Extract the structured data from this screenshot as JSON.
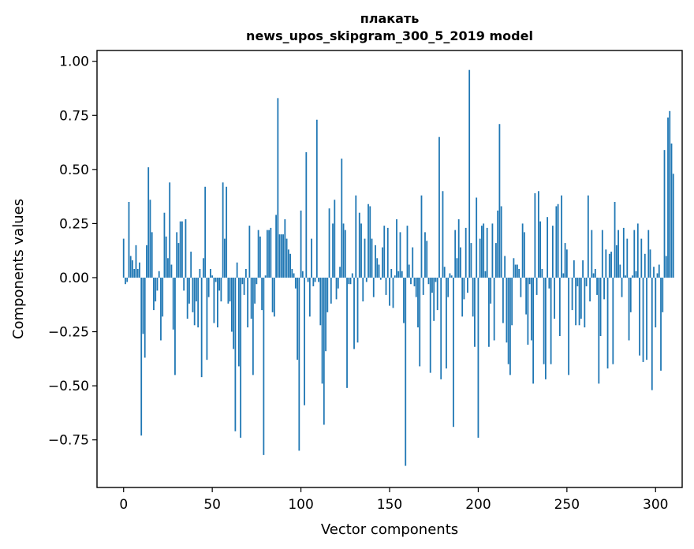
{
  "chart_data": {
    "type": "bar",
    "title": "плакать",
    "subtitle": "news_upos_skipgram_300_5_2019 model",
    "xlabel": "Vector components",
    "ylabel": "Components values",
    "xlim": [
      -15,
      315
    ],
    "ylim": [
      -0.97,
      1.05
    ],
    "xticks": [
      0,
      50,
      100,
      150,
      200,
      250,
      300
    ],
    "xtick_labels": [
      "0",
      "50",
      "100",
      "150",
      "200",
      "250",
      "300"
    ],
    "yticks": [
      -0.75,
      -0.5,
      -0.25,
      0.0,
      0.25,
      0.5,
      0.75,
      1.0
    ],
    "ytick_labels": [
      "−0.75",
      "−0.50",
      "−0.25",
      "0.00",
      "0.25",
      "0.50",
      "0.75",
      "1.00"
    ],
    "grid": false,
    "bar_color": "#1f77b4",
    "x_start": 0,
    "values": [
      0.18,
      -0.03,
      -0.02,
      0.35,
      0.1,
      0.08,
      0.04,
      0.15,
      0.04,
      0.07,
      -0.73,
      -0.26,
      -0.37,
      0.15,
      0.51,
      0.36,
      0.21,
      -0.15,
      -0.11,
      -0.06,
      0.03,
      -0.29,
      -0.18,
      0.3,
      0.19,
      0.09,
      0.44,
      0.06,
      -0.24,
      -0.45,
      0.21,
      0.16,
      0.26,
      0.26,
      -0.06,
      0.27,
      -0.19,
      -0.12,
      0.12,
      -0.16,
      -0.22,
      -0.11,
      -0.23,
      0.04,
      -0.46,
      0.09,
      0.42,
      -0.38,
      -0.09,
      0.04,
      0.01,
      -0.21,
      -0.02,
      -0.23,
      -0.06,
      -0.11,
      0.44,
      0.18,
      0.42,
      -0.12,
      -0.11,
      -0.25,
      -0.33,
      -0.71,
      0.07,
      -0.41,
      -0.74,
      -0.03,
      -0.08,
      0.04,
      -0.23,
      0.24,
      -0.19,
      -0.45,
      -0.12,
      -0.03,
      0.22,
      0.19,
      -0.15,
      -0.82,
      0.01,
      0.22,
      0.22,
      0.23,
      -0.16,
      -0.18,
      0.29,
      0.83,
      0.2,
      0.2,
      0.2,
      0.27,
      0.18,
      0.13,
      0.11,
      0.04,
      0.02,
      -0.05,
      -0.38,
      -0.8,
      0.31,
      0.03,
      -0.59,
      0.58,
      -0.02,
      -0.18,
      0.18,
      -0.04,
      -0.02,
      0.73,
      -0.02,
      -0.22,
      -0.49,
      -0.68,
      -0.34,
      -0.16,
      0.32,
      -0.12,
      0.25,
      0.36,
      -0.1,
      -0.05,
      0.05,
      0.55,
      0.25,
      0.22,
      -0.51,
      -0.03,
      -0.03,
      0.02,
      -0.33,
      0.38,
      -0.3,
      0.3,
      0.25,
      -0.11,
      0.18,
      -0.02,
      0.34,
      0.33,
      0.18,
      -0.09,
      0.15,
      0.09,
      0.06,
      -0.01,
      0.14,
      0.24,
      -0.08,
      0.23,
      -0.13,
      0.04,
      -0.14,
      0.01,
      0.27,
      0.03,
      0.21,
      0.03,
      -0.21,
      -0.87,
      0.24,
      0.06,
      -0.03,
      0.14,
      -0.04,
      -0.09,
      -0.23,
      -0.41,
      0.38,
      -0.08,
      0.21,
      0.17,
      -0.03,
      -0.44,
      -0.07,
      -0.2,
      -0.02,
      -0.15,
      0.65,
      -0.47,
      0.4,
      0.05,
      -0.42,
      -0.09,
      0.02,
      0.01,
      -0.69,
      0.22,
      0.09,
      0.27,
      0.14,
      -0.18,
      -0.1,
      0.23,
      -0.07,
      0.96,
      0.16,
      -0.18,
      -0.32,
      0.37,
      -0.74,
      0.18,
      0.24,
      0.25,
      0.03,
      0.23,
      -0.32,
      -0.12,
      0.25,
      -0.29,
      0.16,
      0.31,
      0.71,
      0.33,
      -0.21,
      0.1,
      -0.3,
      -0.4,
      -0.45,
      -0.22,
      0.09,
      0.06,
      0.06,
      0.04,
      -0.09,
      0.25,
      0.21,
      -0.17,
      -0.31,
      -0.03,
      -0.29,
      -0.49,
      0.39,
      -0.08,
      0.4,
      0.26,
      0.04,
      -0.4,
      -0.47,
      0.28,
      -0.05,
      -0.4,
      0.24,
      -0.19,
      0.33,
      0.34,
      -0.27,
      0.38,
      0.02,
      0.16,
      0.13,
      -0.45,
      0.0,
      -0.15,
      0.08,
      -0.22,
      -0.04,
      -0.22,
      -0.19,
      0.08,
      -0.23,
      -0.04,
      0.38,
      -0.11,
      0.22,
      0.02,
      0.04,
      -0.08,
      -0.49,
      -0.27,
      0.22,
      -0.1,
      0.13,
      -0.42,
      0.11,
      0.12,
      -0.4,
      0.35,
      0.15,
      0.22,
      0.06,
      -0.09,
      0.23,
      0.01,
      0.18,
      -0.29,
      -0.16,
      0.01,
      0.22,
      0.03,
      0.25,
      -0.36,
      0.18,
      -0.39,
      0.11,
      -0.38,
      0.22,
      0.13,
      -0.52,
      0.05,
      -0.23,
      0.02,
      0.06,
      -0.43,
      -0.16,
      0.59,
      0.1,
      0.74,
      0.77,
      0.62,
      0.48
    ]
  }
}
